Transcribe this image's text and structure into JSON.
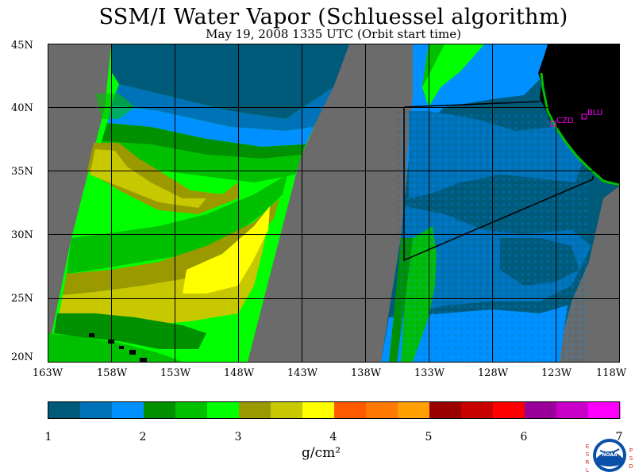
{
  "title": "SSM/I Water Vapor (Schluessel algorithm)",
  "subtitle": "May 19, 2008  1335 UTC  (Orbit start time)",
  "latitude_labels": [
    "45N",
    "40N",
    "35N",
    "30N",
    "25N",
    "20N"
  ],
  "longitude_labels": [
    "163W",
    "158W",
    "153W",
    "148W",
    "143W",
    "138W",
    "133W",
    "128W",
    "123W",
    "118W"
  ],
  "colorbar": {
    "ticks": [
      "1",
      "2",
      "3",
      "4",
      "5",
      "6",
      "7"
    ],
    "unit_label": "g/cm²",
    "colors": [
      "#005a7a",
      "#0072b8",
      "#0090ff",
      "#009000",
      "#00c000",
      "#00ff00",
      "#9a9a00",
      "#c8c800",
      "#ffff00",
      "#ff5a00",
      "#ff7a00",
      "#ff9f00",
      "#9a0000",
      "#c80000",
      "#ff0000",
      "#9a009a",
      "#c800c8",
      "#ff00ff"
    ]
  },
  "sites": [
    {
      "code": "CZD"
    },
    {
      "code": "BLU"
    }
  ],
  "logo": {
    "left_letters": [
      "E",
      "S",
      "R",
      "L"
    ],
    "right_letters": [
      "P",
      "S",
      "D"
    ],
    "emblem_text": "NOAA"
  }
}
